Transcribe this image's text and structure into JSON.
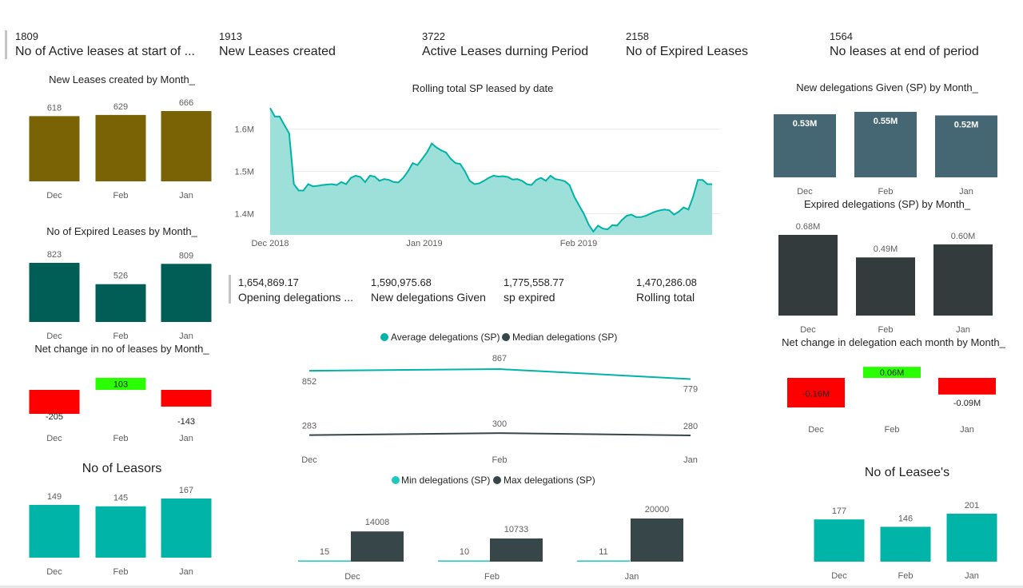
{
  "kpis": [
    {
      "value": "1809",
      "label": "No of Active leases at start of ..."
    },
    {
      "value": "1913",
      "label": "New Leases created"
    },
    {
      "value": "3722",
      "label": "Active Leases durning Period"
    },
    {
      "value": "2158",
      "label": "No of Expired Leases"
    },
    {
      "value": "1564",
      "label": "No leases at end of period"
    }
  ],
  "mid_kpis": [
    {
      "value": "1,654,869.17",
      "label": "Opening delegations ..."
    },
    {
      "value": "1,590,975.68",
      "label": "New delegations Given"
    },
    {
      "value": "1,775,558.77",
      "label": "sp expired"
    },
    {
      "value": "1,470,286.08",
      "label": "Rolling total"
    }
  ],
  "titles": {
    "new_leases": "New Leases created by Month_",
    "expired": "No of Expired Leases by Month_",
    "net_change": "Net change in no of leases by Month_",
    "leasors": "No of Leasors",
    "rolling": "Rolling total SP leased by date",
    "new_deleg": "New delegations Given (SP) by Month_",
    "exp_deleg": "Expired delegations (SP) by Month_",
    "net_deleg": "Net change in delegation each month by Month_",
    "leasees": "No of Leasee's"
  },
  "colors": {
    "olive": "#7a6304",
    "darkteal": "#005e56",
    "teal": "#00b5a8",
    "slate": "#456673",
    "charcoal": "#333b3c",
    "green": "#29ff00",
    "red": "#ff0000",
    "area": "#9ce0d9",
    "line": "#00b3a8",
    "dark": "#374649",
    "minline": "#1fc8bc"
  },
  "chart_data": [
    {
      "id": "new_leases",
      "type": "bar",
      "categories": [
        "Dec",
        "Feb",
        "Jan"
      ],
      "values": [
        618,
        629,
        666
      ],
      "labels": [
        "618",
        "629",
        "666"
      ],
      "color": "olive"
    },
    {
      "id": "expired",
      "type": "bar",
      "categories": [
        "Dec",
        "Feb",
        "Jan"
      ],
      "values": [
        823,
        526,
        809
      ],
      "labels": [
        "823",
        "526",
        "809"
      ],
      "color": "darkteal"
    },
    {
      "id": "net_change",
      "type": "bar",
      "categories": [
        "Dec",
        "Feb",
        "Jan"
      ],
      "values": [
        -205,
        103,
        -143
      ],
      "labels": [
        "-205",
        "103",
        "-143"
      ],
      "colors": [
        "red",
        "green",
        "red"
      ]
    },
    {
      "id": "leasors",
      "type": "bar",
      "categories": [
        "Dec",
        "Feb",
        "Jan"
      ],
      "values": [
        149,
        145,
        167
      ],
      "labels": [
        "149",
        "145",
        "167"
      ],
      "color": "teal"
    },
    {
      "id": "rolling",
      "type": "area",
      "x_ticks": [
        "Dec 2018",
        "Jan 2019",
        "Feb 2019"
      ],
      "y_ticks": [
        "1.6M",
        "1.5M",
        "1.4M"
      ],
      "ylim": [
        1.35,
        1.66
      ],
      "values": [
        1.65,
        1.63,
        1.63,
        1.61,
        1.59,
        1.47,
        1.455,
        1.455,
        1.47,
        1.465,
        1.466,
        1.468,
        1.469,
        1.47,
        1.468,
        1.475,
        1.47,
        1.485,
        1.49,
        1.487,
        1.475,
        1.49,
        1.488,
        1.478,
        1.482,
        1.48,
        1.475,
        1.474,
        1.485,
        1.5,
        1.52,
        1.515,
        1.53,
        1.545,
        1.566,
        1.557,
        1.55,
        1.545,
        1.53,
        1.52,
        1.518,
        1.5,
        1.478,
        1.47,
        1.472,
        1.478,
        1.485,
        1.49,
        1.488,
        1.489,
        1.487,
        1.481,
        1.482,
        1.478,
        1.47,
        1.468,
        1.48,
        1.485,
        1.478,
        1.49,
        1.482,
        1.48,
        1.477,
        1.468,
        1.44,
        1.42,
        1.4,
        1.375,
        1.358,
        1.372,
        1.365,
        1.363,
        1.373,
        1.372,
        1.385,
        1.395,
        1.398,
        1.392,
        1.392,
        1.395,
        1.4,
        1.405,
        1.408,
        1.41,
        1.408,
        1.398,
        1.405,
        1.415,
        1.41,
        1.44,
        1.48,
        1.48,
        1.47,
        1.47
      ]
    },
    {
      "id": "avg_median",
      "type": "line",
      "categories": [
        "Dec",
        "Feb",
        "Jan"
      ],
      "legend": [
        "Average delegations (SP)",
        "Median delegations (SP)"
      ],
      "series": [
        {
          "name": "Average delegations (SP)",
          "values": [
            852,
            867,
            779
          ],
          "labels": [
            "852",
            "867",
            "779"
          ],
          "color": "line"
        },
        {
          "name": "Median delegations (SP)",
          "values": [
            283,
            300,
            280
          ],
          "labels": [
            "283",
            "300",
            "280"
          ],
          "color": "dark"
        }
      ]
    },
    {
      "id": "min_max",
      "type": "bar",
      "categories": [
        "Dec",
        "Feb",
        "Jan"
      ],
      "legend": [
        "Min delegations (SP)",
        "Max delegations (SP)"
      ],
      "series": [
        {
          "name": "Min delegations (SP)",
          "values": [
            15,
            10,
            11
          ],
          "labels": [
            "15",
            "10",
            "11"
          ],
          "color": "minline"
        },
        {
          "name": "Max delegations (SP)",
          "values": [
            14008,
            10733,
            20000
          ],
          "labels": [
            "14008",
            "10733",
            "20000"
          ],
          "color": "dark"
        }
      ]
    },
    {
      "id": "new_deleg",
      "type": "bar",
      "categories": [
        "Dec",
        "Feb",
        "Jan"
      ],
      "values": [
        0.53,
        0.55,
        0.52
      ],
      "labels": [
        "0.53M",
        "0.55M",
        "0.52M"
      ],
      "color": "slate"
    },
    {
      "id": "exp_deleg",
      "type": "bar",
      "categories": [
        "Dec",
        "Feb",
        "Jan"
      ],
      "values": [
        0.68,
        0.49,
        0.6
      ],
      "labels": [
        "0.68M",
        "0.49M",
        "0.60M"
      ],
      "color": "charcoal"
    },
    {
      "id": "net_deleg",
      "type": "bar",
      "categories": [
        "Dec",
        "Feb",
        "Jan"
      ],
      "values": [
        -0.16,
        0.06,
        -0.09
      ],
      "labels": [
        "-0.16M",
        "0.06M",
        "-0.09M"
      ],
      "colors": [
        "red",
        "green",
        "red"
      ]
    },
    {
      "id": "leasees",
      "type": "bar",
      "categories": [
        "Dec",
        "Feb",
        "Jan"
      ],
      "values": [
        177,
        146,
        201
      ],
      "labels": [
        "177",
        "146",
        "201"
      ],
      "color": "teal"
    }
  ]
}
